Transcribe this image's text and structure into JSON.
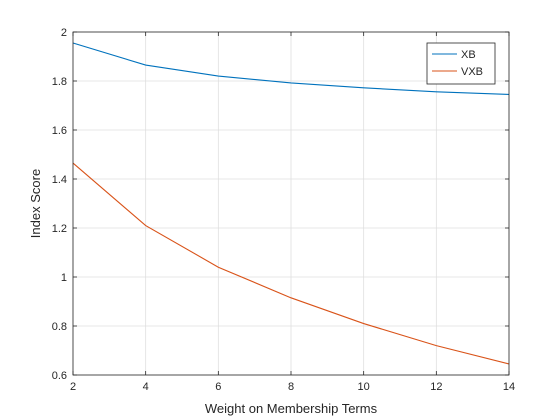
{
  "chart_data": {
    "type": "line",
    "xlabel": "Weight on Membership Terms",
    "ylabel": "Index Score",
    "xlim": [
      2,
      14
    ],
    "ylim": [
      0.6,
      2
    ],
    "x_ticks": [
      2,
      4,
      6,
      8,
      10,
      12,
      14
    ],
    "y_ticks": [
      0.6,
      0.8,
      1,
      1.2,
      1.4,
      1.6,
      1.8,
      2
    ],
    "grid": true,
    "legend_placement": "top-right",
    "x": [
      2,
      4,
      6,
      8,
      10,
      12,
      14
    ],
    "series": [
      {
        "name": "XB",
        "color": "#0072BD",
        "values": [
          1.955,
          1.865,
          1.82,
          1.792,
          1.772,
          1.756,
          1.745
        ]
      },
      {
        "name": "VXB",
        "color": "#D95319",
        "values": [
          1.465,
          1.21,
          1.04,
          0.915,
          0.81,
          0.72,
          0.645
        ]
      }
    ]
  }
}
